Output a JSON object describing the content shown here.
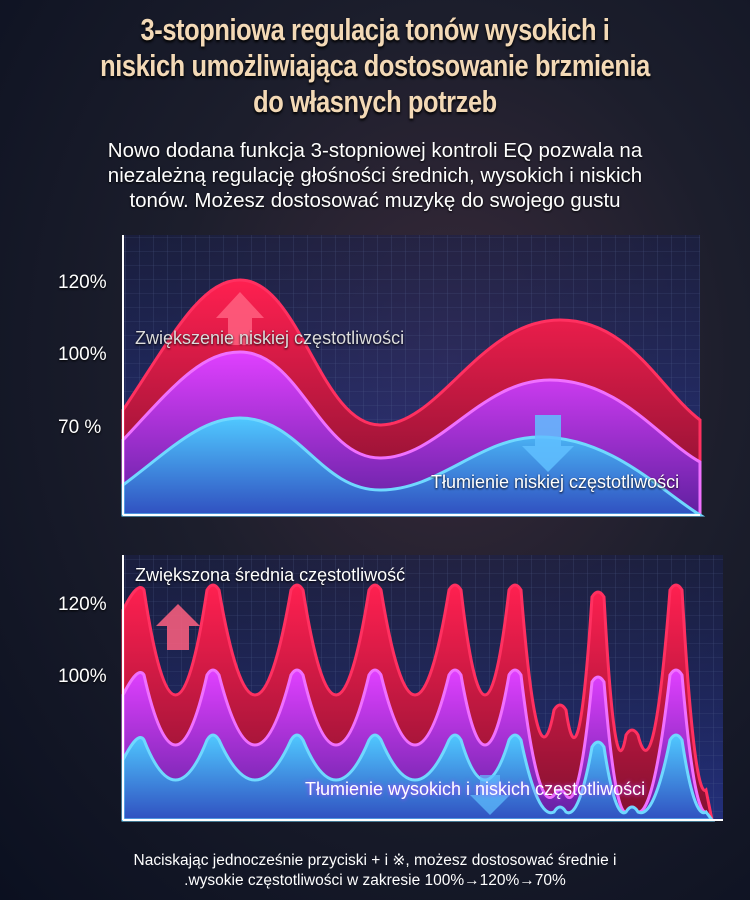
{
  "title_lines": [
    "3-stopniowa regulacja tonów wysokich i",
    "niskich umożliwiająca dostosowanie brzmienia",
    "do własnych potrzeb"
  ],
  "subtitle_lines": [
    "Nowo dodana funkcja 3-stopniowej kontroli EQ pozwala na",
    "niezależną regulację głośności średnich, wysokich i niskich",
    "tonów. Możesz dostosować muzykę do swojego gustu"
  ],
  "chart_top": {
    "levels": [
      "120%",
      "100%",
      "70 %"
    ],
    "boost_label": "Zwiększenie niskiej częstotliwości",
    "cut_label": "Tłumienie niskiej częstotliwości"
  },
  "chart_bottom": {
    "levels": [
      "120%",
      "100%"
    ],
    "boost_label": "Zwiększona średnia częstotliwość",
    "cut_label": "Tłumienie wysokich i niskich częstotliwości"
  },
  "footer_lines": [
    "Naciskając jednocześnie przyciski + i ※, możesz dostosować średnie i",
    ".wysokie częstotliwości w zakresie 100%→120%→70%"
  ],
  "colors": {
    "title": "#f3d9b6",
    "red": "#e0183c",
    "magenta": "#c83cf0",
    "blue": "#4ab8f0"
  }
}
